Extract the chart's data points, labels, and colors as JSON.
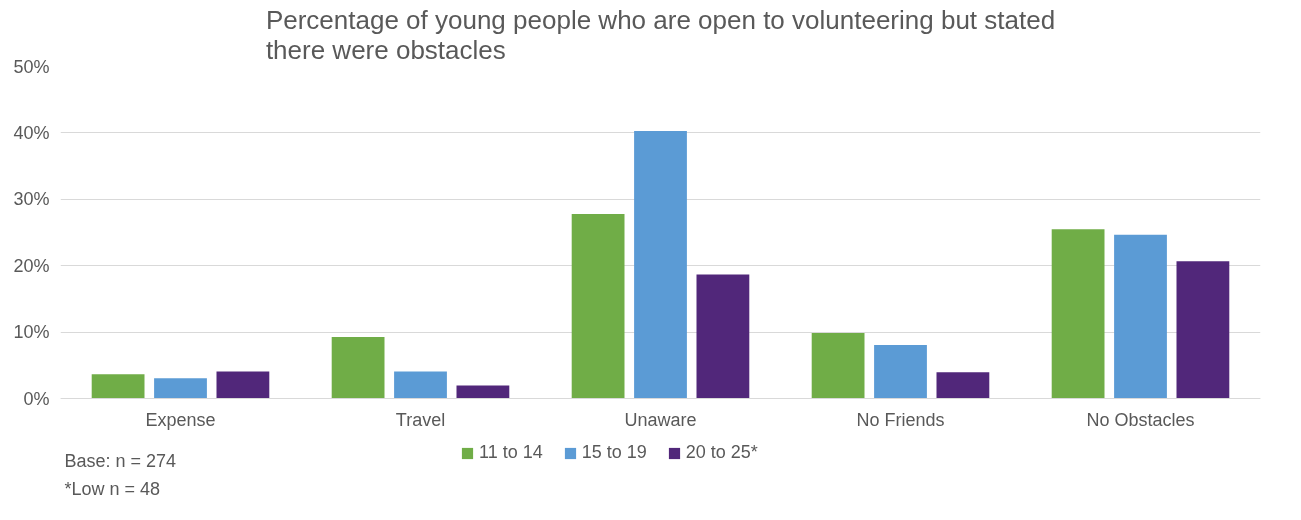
{
  "chart_data": {
    "type": "bar",
    "title": "Percentage of young people who are open to volunteering but stated there were obstacles",
    "categories": [
      "Expense",
      "Travel",
      "Unaware",
      "No Friends",
      "No Obstacles"
    ],
    "series": [
      {
        "name": "11 to 14",
        "color": "#70ad47",
        "values": [
          3.7,
          9.3,
          27.8,
          9.9,
          25.5
        ]
      },
      {
        "name": "15 to 19",
        "color": "#5b9bd5",
        "values": [
          3.1,
          4.1,
          40.3,
          8.1,
          24.7
        ]
      },
      {
        "name": "20 to 25*",
        "color": "#51277a",
        "values": [
          4.1,
          2.0,
          18.7,
          4.0,
          20.7
        ]
      }
    ],
    "ylim": [
      0,
      50
    ],
    "yticks": [
      {
        "value": 0,
        "label": "0%"
      },
      {
        "value": 10,
        "label": "10%"
      },
      {
        "value": 20,
        "label": "20%"
      },
      {
        "value": 30,
        "label": "30%"
      },
      {
        "value": 40,
        "label": "40%"
      },
      {
        "value": 50,
        "label": "50%"
      }
    ],
    "grid": "y",
    "legend": "bottom",
    "annotations": [
      "Base: n = 274",
      "*Low n = 48"
    ]
  }
}
